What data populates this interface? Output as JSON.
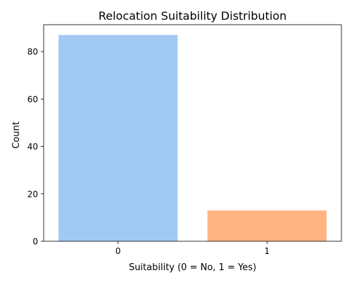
{
  "chart_data": {
    "type": "bar",
    "title": "Relocation Suitability Distribution",
    "xlabel": "Suitability (0 = No, 1 = Yes)",
    "ylabel": "Count",
    "categories": [
      "0",
      "1"
    ],
    "values": [
      87,
      13
    ],
    "colors": [
      "#a1c9f4",
      "#ffb482"
    ],
    "ylim": [
      0,
      91.35
    ],
    "yticks": [
      0,
      20,
      40,
      60,
      80
    ],
    "grid": false,
    "legend": "none"
  }
}
